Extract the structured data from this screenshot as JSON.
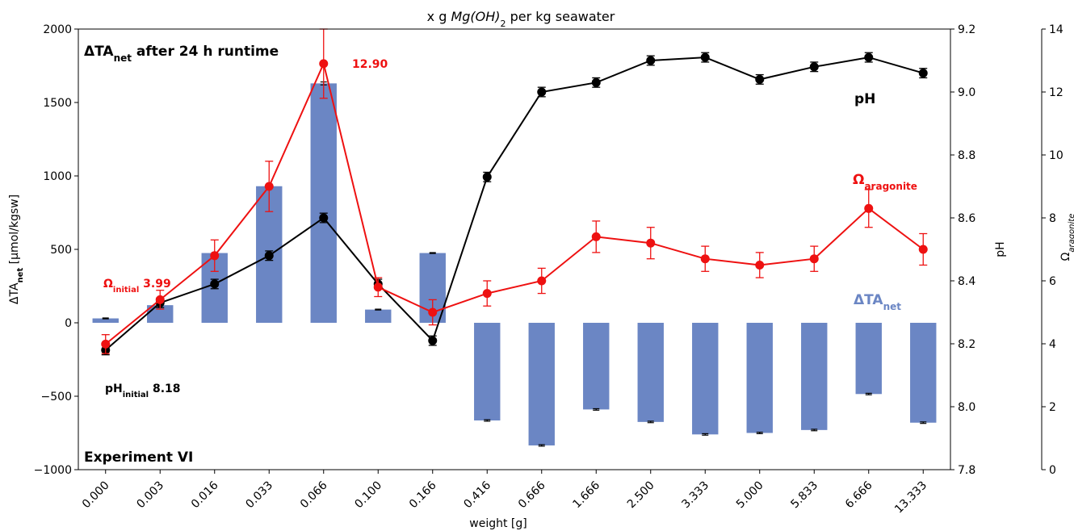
{
  "chart_data": {
    "type": "bar",
    "title": "x g Mg(OH)₂ per kg seawater",
    "xlabel": "weight [g]",
    "ylabel": "ΔTAnet [µmol/kgsw]",
    "y2label": "pH",
    "y3label": "Ωaragonite",
    "categories": [
      "0.000",
      "0.003",
      "0.016",
      "0.033",
      "0.066",
      "0.100",
      "0.166",
      "0.416",
      "0.666",
      "1.666",
      "2.500",
      "3.333",
      "5.000",
      "5.833",
      "6.666",
      "13.333"
    ],
    "ylim": [
      -1000,
      2000
    ],
    "y2lim": [
      7.8,
      9.2
    ],
    "y3lim": [
      0,
      14
    ],
    "yticks": [
      -1000,
      -500,
      0,
      500,
      1000,
      1500,
      2000
    ],
    "y2ticks": [
      7.8,
      8.0,
      8.2,
      8.4,
      8.6,
      8.8,
      9.0,
      9.2
    ],
    "y3ticks": [
      0,
      2,
      4,
      6,
      8,
      10,
      12,
      14
    ],
    "ytick_labels": [
      "−1000",
      "−500",
      "0",
      "500",
      "1000",
      "1500",
      "2000"
    ],
    "y2tick_labels": [
      "7.8",
      "8.0",
      "8.2",
      "8.4",
      "8.6",
      "8.8",
      "9.0",
      "9.2"
    ],
    "y3tick_labels": [
      "0",
      "2",
      "4",
      "6",
      "8",
      "10",
      "12",
      "14"
    ],
    "grid": false,
    "series": [
      {
        "name": "ΔTAnet",
        "kind": "bar",
        "axis": "left",
        "color": "#6b86c4",
        "values": [
          30,
          120,
          475,
          930,
          1630,
          90,
          475,
          -665,
          -835,
          -590,
          -675,
          -760,
          -750,
          -730,
          -485,
          -680
        ],
        "errors": [
          3,
          3,
          3,
          3,
          10,
          3,
          3,
          5,
          5,
          5,
          5,
          5,
          5,
          5,
          5,
          5
        ]
      },
      {
        "name": "pH",
        "kind": "line",
        "axis": "right1",
        "color": "#000000",
        "values": [
          8.18,
          8.33,
          8.39,
          8.48,
          8.6,
          8.39,
          8.21,
          8.73,
          9.0,
          9.03,
          9.1,
          9.11,
          9.04,
          9.08,
          9.11,
          9.06
        ],
        "errors": [
          0.015,
          0.015,
          0.015,
          0.015,
          0.015,
          0.015,
          0.015,
          0.015,
          0.015,
          0.015,
          0.015,
          0.015,
          0.015,
          0.015,
          0.015,
          0.015
        ]
      },
      {
        "name": "Ωaragonite",
        "kind": "line",
        "axis": "right2",
        "color": "#ee1111",
        "values": [
          3.99,
          5.4,
          6.8,
          9.0,
          12.9,
          5.8,
          5.0,
          5.6,
          6.0,
          7.4,
          7.2,
          6.7,
          6.5,
          6.7,
          8.3,
          7.0
        ],
        "errors": [
          0.3,
          0.3,
          0.5,
          0.8,
          1.1,
          0.3,
          0.4,
          0.4,
          0.4,
          0.5,
          0.5,
          0.4,
          0.4,
          0.4,
          0.6,
          0.5
        ]
      }
    ]
  },
  "annotations": {
    "ta_net_title_main": "ΔTA",
    "ta_net_title_sub": "net",
    "ta_net_title_rest": " after 24 h runtime",
    "omega_initial_main": "Ω",
    "omega_initial_sub": "initial",
    "omega_initial_value": " 3.99",
    "ph_initial_main": "pH",
    "ph_initial_sub": "initial",
    "ph_initial_value": " 8.18",
    "peak_value": "12.90",
    "ph_label": "pH",
    "omega_label_main": "Ω",
    "omega_label_sub": "aragonite",
    "ta_label_main": "ΔTA",
    "ta_label_sub": "net",
    "experiment_label": "Experiment VI"
  },
  "axes_text": {
    "title_prefix": "x g ",
    "title_formula": "Mg(OH)",
    "title_subscript": "2",
    "title_suffix": " per kg seawater",
    "xlabel": "weight [g]",
    "ylabel_main": "ΔTA",
    "ylabel_sub": "net",
    "ylabel_rest": " [µmol/kgsw]",
    "y2label": "pH",
    "y3label_main": "Ω",
    "y3label_sub": "aragonite"
  }
}
